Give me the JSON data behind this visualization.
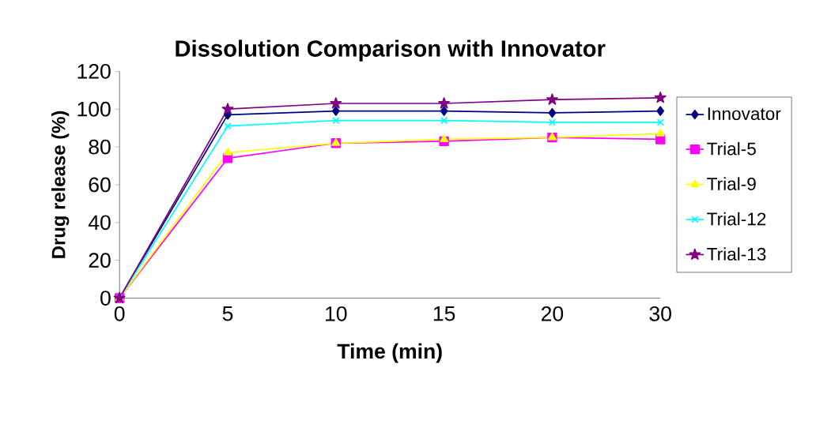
{
  "chart_data": {
    "type": "line",
    "title": "Dissolution Comparison with Innovator",
    "xlabel": "Time (min)",
    "ylabel": "Drug release (%)",
    "categories": [
      "0",
      "5",
      "10",
      "15",
      "20",
      "30"
    ],
    "series": [
      {
        "name": "Innovator",
        "color": "#000080",
        "marker": "diamond",
        "values": [
          0,
          97,
          99,
          99,
          98,
          99
        ]
      },
      {
        "name": "Trial-5",
        "color": "#ff00ff",
        "marker": "square",
        "values": [
          0,
          74,
          82,
          83,
          85,
          84
        ]
      },
      {
        "name": "Trial-9",
        "color": "#ffff00",
        "marker": "triangle",
        "values": [
          0,
          77,
          82,
          84,
          85,
          87
        ]
      },
      {
        "name": "Trial-12",
        "color": "#00ffff",
        "marker": "cross",
        "values": [
          0,
          91,
          94,
          94,
          93,
          93
        ]
      },
      {
        "name": "Trial-13",
        "color": "#800080",
        "marker": "star",
        "values": [
          0,
          100,
          103,
          103,
          105,
          106
        ]
      }
    ],
    "ylim": [
      0,
      120
    ],
    "yticks": [
      0,
      20,
      40,
      60,
      80,
      100,
      120
    ],
    "grid": false,
    "legend": "right",
    "line_style": "solid"
  }
}
